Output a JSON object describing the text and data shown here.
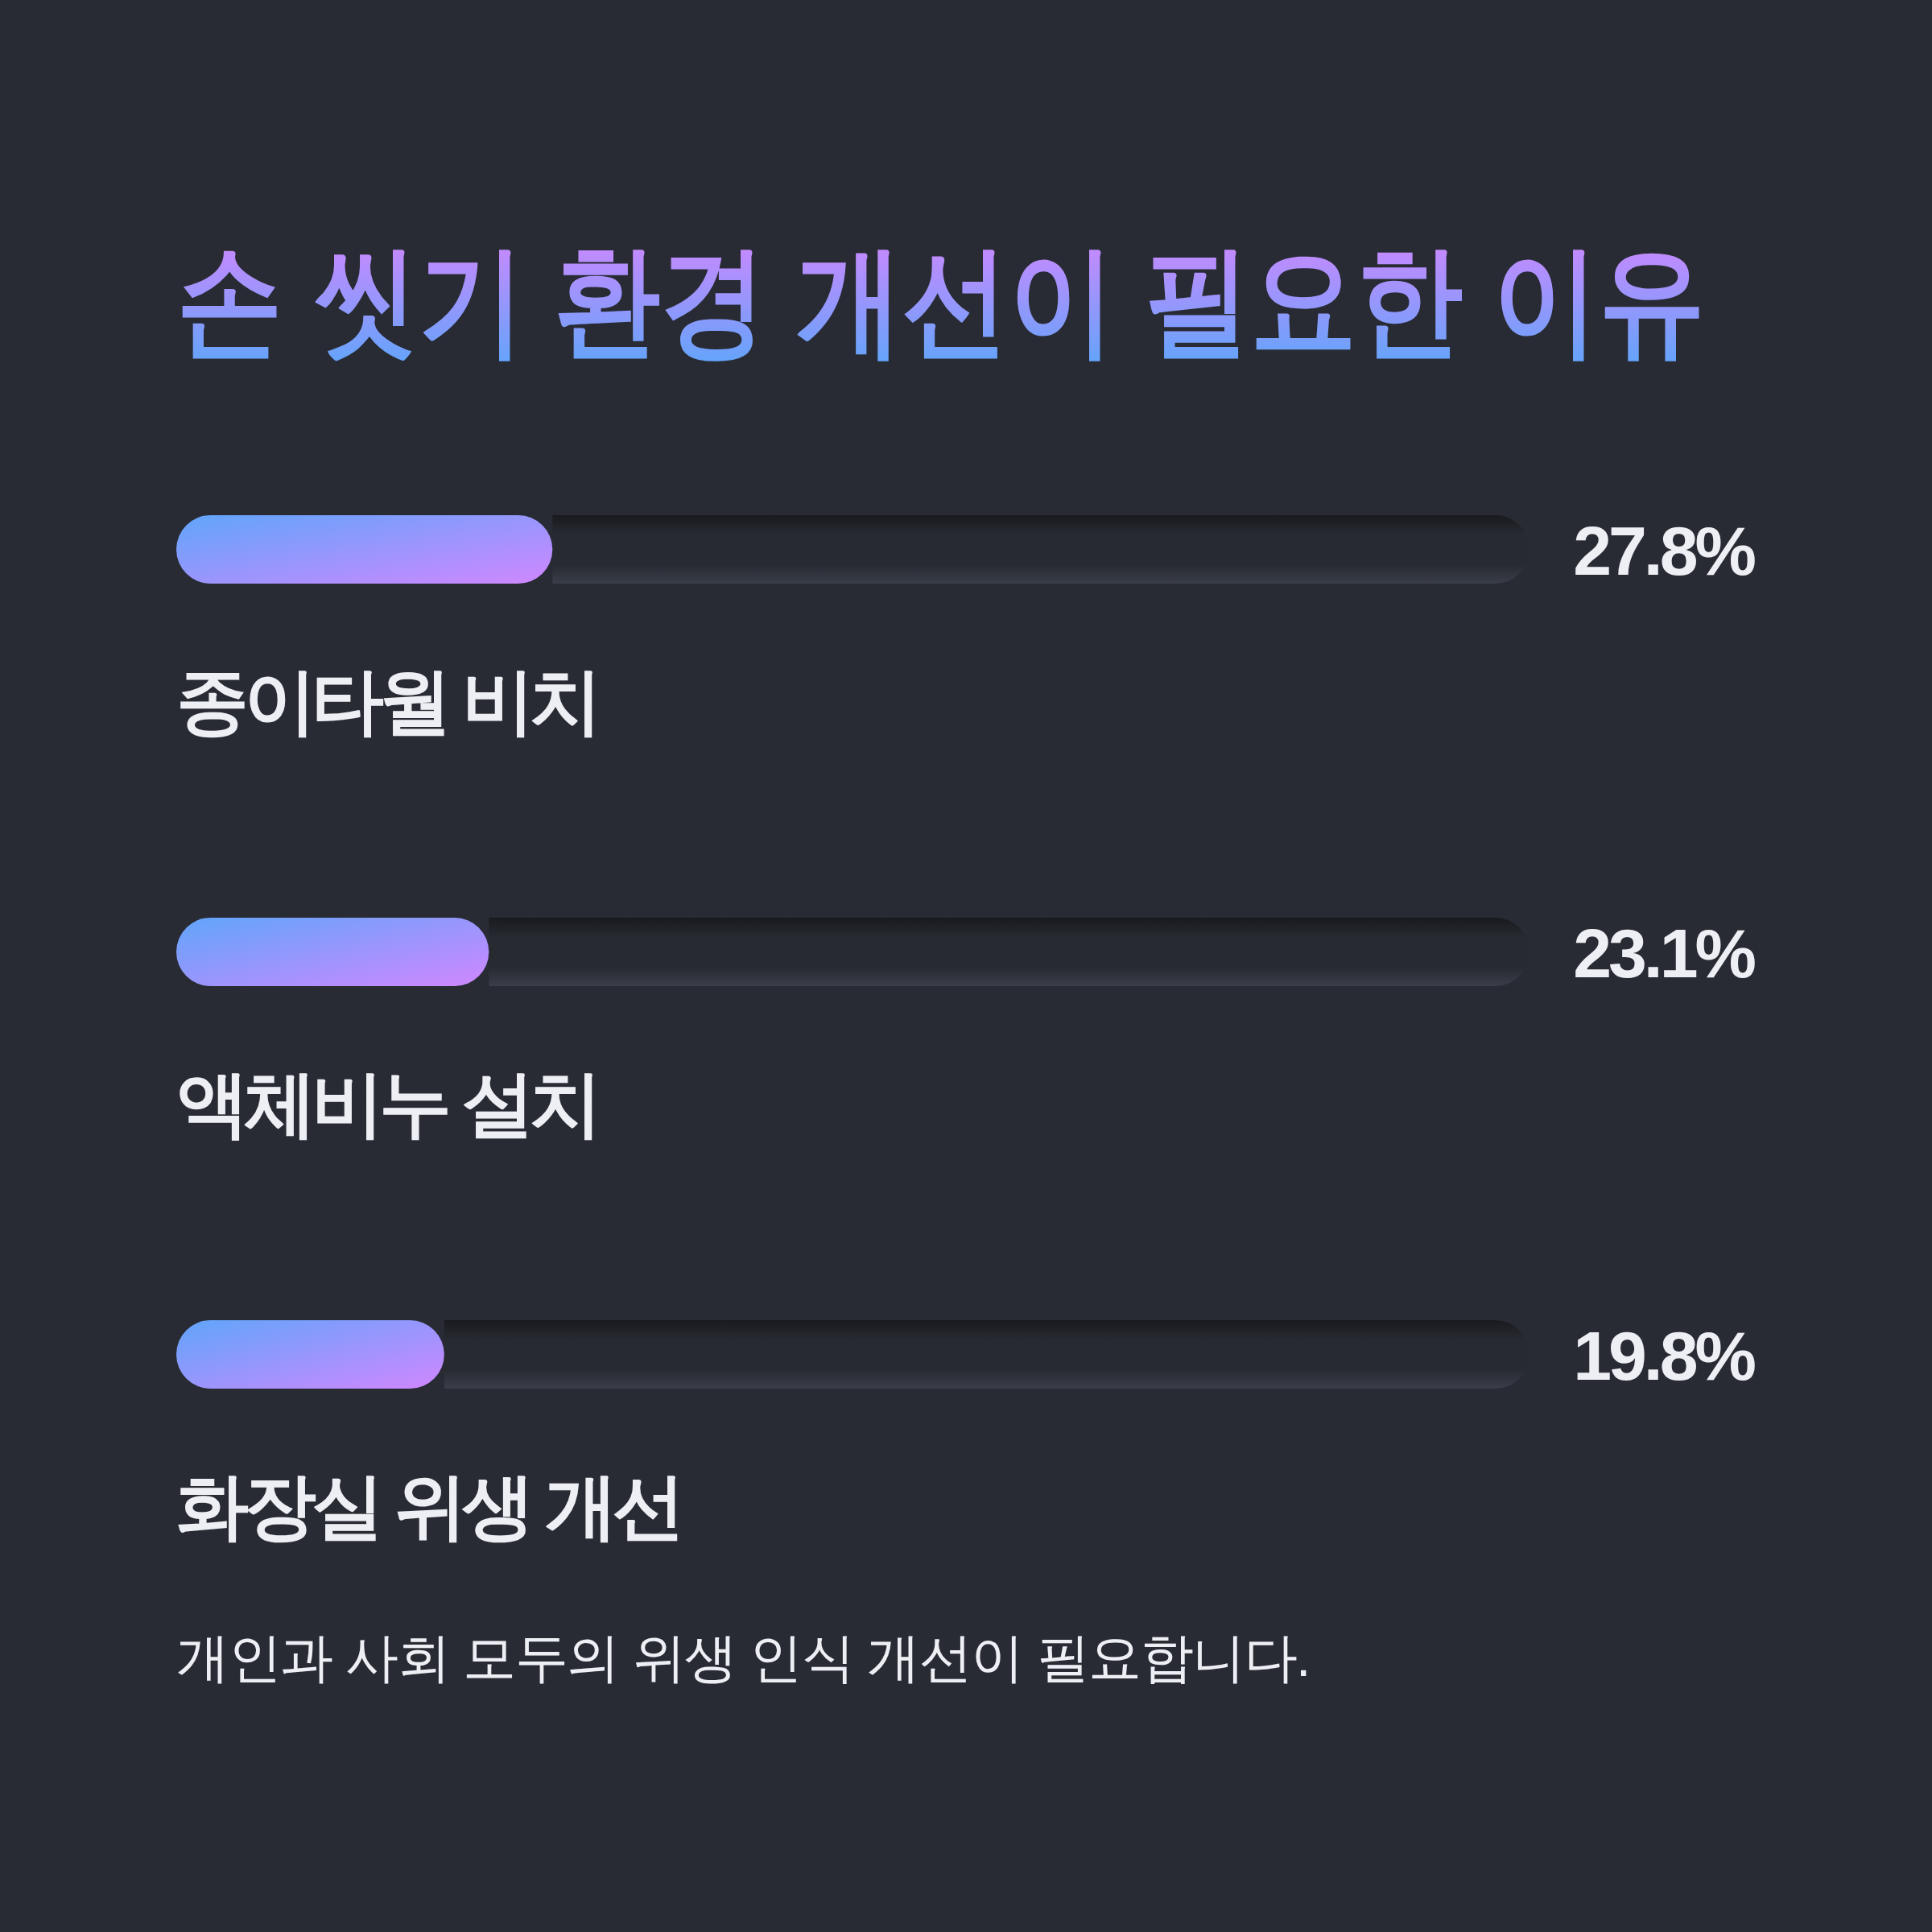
{
  "chart_data": {
    "type": "bar",
    "orientation": "horizontal",
    "stacked": true,
    "title": "손 씻기 환경 개선이 필요한 이유",
    "categories": [
      "종이타월 비치",
      "액체비누 설치",
      "화장실 위생 개선"
    ],
    "series": [
      {
        "color": "#60a5fa",
        "values": [
          27.8,
          23.1,
          19.8
        ],
        "value_labels": [
          "27.8%",
          "23.1%",
          "19.8%"
        ]
      },
      {
        "color": "#272a31",
        "values": [
          72.2,
          76.9,
          80.2
        ]
      }
    ],
    "xlim": [
      0,
      100
    ],
    "tick_labels": "y",
    "annotations": [
      "개인과 사회 모두의 위생 인식 개선이 필요합니다."
    ]
  }
}
